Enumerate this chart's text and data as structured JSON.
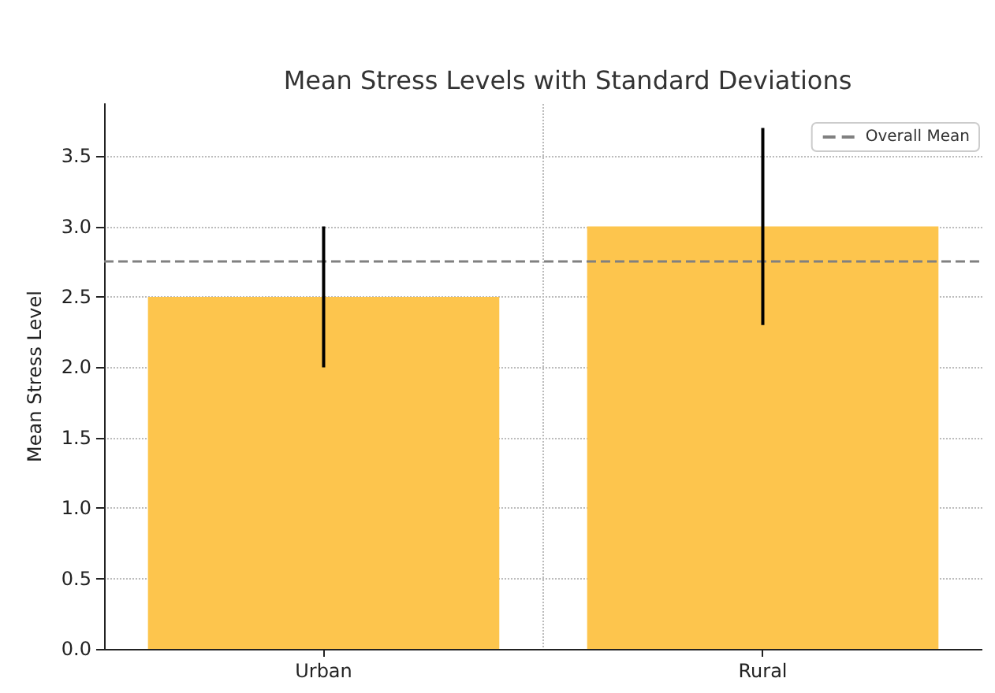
{
  "chart_data": {
    "type": "bar",
    "title": "Mean Stress Levels with Standard Deviations",
    "ylabel": "Mean Stress Level",
    "categories": [
      "Urban",
      "Rural"
    ],
    "values": [
      2.5,
      3.0
    ],
    "color": "#fdc54d",
    "errors": [
      0.5,
      0.7
    ],
    "ylim": [
      0,
      3.87
    ],
    "yticks": [
      {
        "value": 0,
        "label": "0.0"
      },
      0.5,
      {
        "value": 1,
        "label": "1.0"
      },
      1.5,
      {
        "value": 2,
        "label": "2.0"
      },
      2.5,
      {
        "value": 3,
        "label": "3.0"
      },
      3.5
    ],
    "grid": true,
    "legend": "top right",
    "ref_lines": [
      {
        "axis": "y",
        "value": 2.75,
        "label": "Overall Mean",
        "color": "#808080",
        "line_style": "dashed"
      }
    ]
  }
}
